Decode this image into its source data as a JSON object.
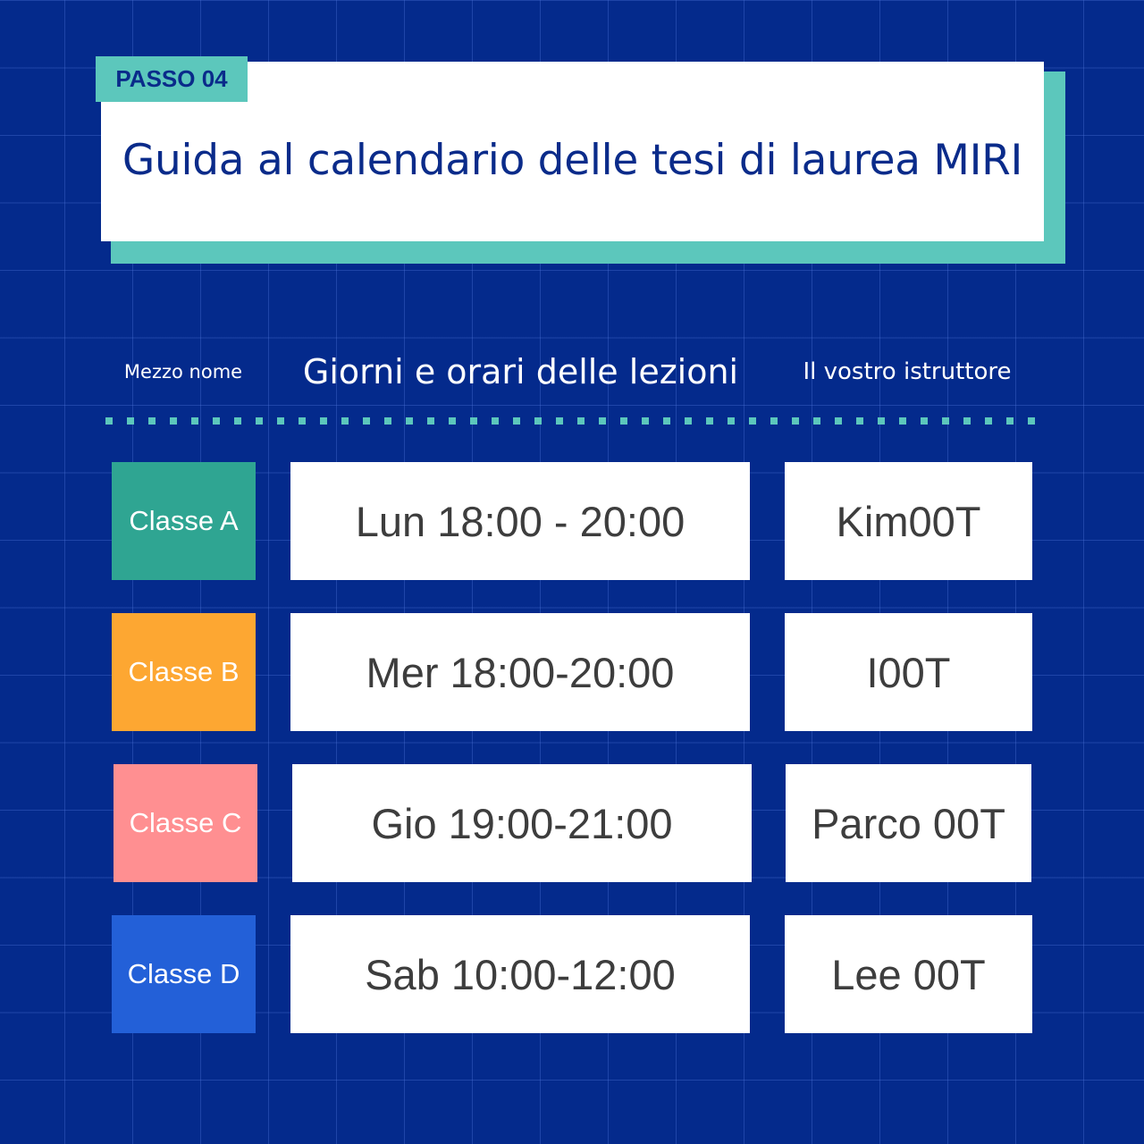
{
  "step_tag": "PASSO 04",
  "title": "Guida al calendario delle tesi di laurea MIRI",
  "headers": {
    "name": "Mezzo nome",
    "schedule": "Giorni e orari delle lezioni",
    "instructor": "Il vostro istruttore"
  },
  "colors": {
    "background": "#042a8c",
    "accent": "#5cc7bc",
    "title": "#0a2b8a"
  },
  "rows": [
    {
      "class": "Classe A",
      "schedule": "Lun 18:00 - 20:00",
      "instructor": "Kim00T",
      "color": "#2fa592"
    },
    {
      "class": "Classe B",
      "schedule": "Mer 18:00-20:00",
      "instructor": "I00T",
      "color": "#fda732"
    },
    {
      "class": "Classe C",
      "schedule": "Gio 19:00-21:00",
      "instructor": "Parco 00T",
      "color": "#ff8f91"
    },
    {
      "class": "Classe D",
      "schedule": "Sab 10:00-12:00",
      "instructor": "Lee 00T",
      "color": "#2360d8"
    }
  ]
}
